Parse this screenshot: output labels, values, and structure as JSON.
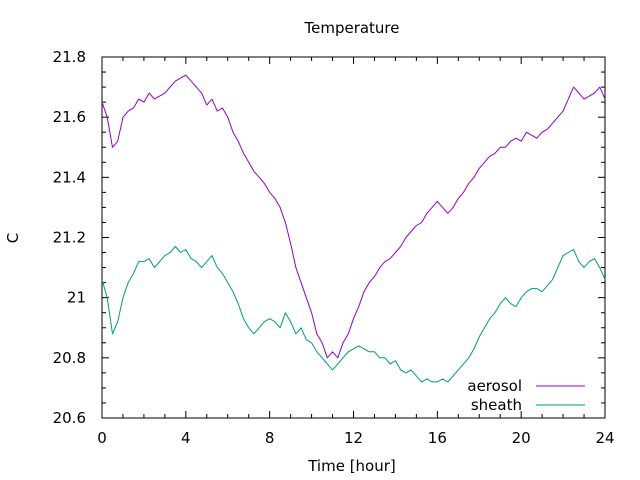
{
  "chart_data": {
    "type": "line",
    "title": "Temperature",
    "xlabel": "Time [hour]",
    "ylabel": "C",
    "xlim": [
      0,
      24
    ],
    "ylim": [
      20.6,
      21.8
    ],
    "xticks": [
      0,
      4,
      8,
      12,
      16,
      20,
      24
    ],
    "xtick_labels": [
      "0",
      "4",
      "8",
      "12",
      "16",
      "20",
      "24"
    ],
    "yticks": [
      20.6,
      20.8,
      21.0,
      21.2,
      21.4,
      21.6,
      21.8
    ],
    "ytick_labels": [
      "20.6",
      "20.8",
      "21",
      "21.2",
      "21.4",
      "21.6",
      "21.8"
    ],
    "grid": false,
    "legend_position": "bottom-right",
    "series": [
      {
        "name": "aerosol",
        "color": "#9400d3",
        "x": [
          0,
          0.25,
          0.5,
          0.75,
          1,
          1.25,
          1.5,
          1.75,
          2,
          2.25,
          2.5,
          2.75,
          3,
          3.25,
          3.5,
          3.75,
          4,
          4.25,
          4.5,
          4.75,
          5,
          5.25,
          5.5,
          5.75,
          6,
          6.25,
          6.5,
          6.75,
          7,
          7.25,
          7.5,
          7.75,
          8,
          8.25,
          8.5,
          8.75,
          9,
          9.25,
          9.5,
          9.75,
          10,
          10.25,
          10.5,
          10.75,
          11,
          11.25,
          11.5,
          11.75,
          12,
          12.25,
          12.5,
          12.75,
          13,
          13.25,
          13.5,
          13.75,
          14,
          14.25,
          14.5,
          14.75,
          15,
          15.25,
          15.5,
          15.75,
          16,
          16.25,
          16.5,
          16.75,
          17,
          17.25,
          17.5,
          17.75,
          18,
          18.25,
          18.5,
          18.75,
          19,
          19.25,
          19.5,
          19.75,
          20,
          20.25,
          20.5,
          20.75,
          21,
          21.25,
          21.5,
          21.75,
          22,
          22.25,
          22.5,
          22.75,
          23,
          23.25,
          23.5,
          23.75,
          24
        ],
        "y": [
          21.65,
          21.6,
          21.5,
          21.52,
          21.6,
          21.62,
          21.63,
          21.66,
          21.65,
          21.68,
          21.66,
          21.67,
          21.68,
          21.7,
          21.72,
          21.73,
          21.74,
          21.72,
          21.7,
          21.68,
          21.64,
          21.66,
          21.62,
          21.63,
          21.6,
          21.55,
          21.52,
          21.48,
          21.45,
          21.42,
          21.4,
          21.38,
          21.35,
          21.33,
          21.3,
          21.25,
          21.18,
          21.1,
          21.05,
          21.0,
          20.95,
          20.88,
          20.85,
          20.8,
          20.82,
          20.8,
          20.85,
          20.88,
          20.93,
          20.97,
          21.02,
          21.05,
          21.07,
          21.1,
          21.12,
          21.13,
          21.15,
          21.17,
          21.2,
          21.22,
          21.24,
          21.25,
          21.28,
          21.3,
          21.32,
          21.3,
          21.28,
          21.3,
          21.33,
          21.35,
          21.38,
          21.4,
          21.43,
          21.45,
          21.47,
          21.48,
          21.5,
          21.5,
          21.52,
          21.53,
          21.52,
          21.55,
          21.54,
          21.53,
          21.55,
          21.56,
          21.58,
          21.6,
          21.62,
          21.66,
          21.7,
          21.68,
          21.66,
          21.67,
          21.68,
          21.7,
          21.66
        ]
      },
      {
        "name": "sheath",
        "color": "#009e73",
        "x": [
          0,
          0.25,
          0.5,
          0.75,
          1,
          1.25,
          1.5,
          1.75,
          2,
          2.25,
          2.5,
          2.75,
          3,
          3.25,
          3.5,
          3.75,
          4,
          4.25,
          4.5,
          4.75,
          5,
          5.25,
          5.5,
          5.75,
          6,
          6.25,
          6.5,
          6.75,
          7,
          7.25,
          7.5,
          7.75,
          8,
          8.25,
          8.5,
          8.75,
          9,
          9.25,
          9.5,
          9.75,
          10,
          10.25,
          10.5,
          10.75,
          11,
          11.25,
          11.5,
          11.75,
          12,
          12.25,
          12.5,
          12.75,
          13,
          13.25,
          13.5,
          13.75,
          14,
          14.25,
          14.5,
          14.75,
          15,
          15.25,
          15.5,
          15.75,
          16,
          16.25,
          16.5,
          16.75,
          17,
          17.25,
          17.5,
          17.75,
          18,
          18.25,
          18.5,
          18.75,
          19,
          19.25,
          19.5,
          19.75,
          20,
          20.25,
          20.5,
          20.75,
          21,
          21.25,
          21.5,
          21.75,
          22,
          22.25,
          22.5,
          22.75,
          23,
          23.25,
          23.5,
          23.75,
          24
        ],
        "y": [
          21.06,
          21.0,
          20.88,
          20.92,
          21.0,
          21.05,
          21.08,
          21.12,
          21.12,
          21.13,
          21.1,
          21.12,
          21.14,
          21.15,
          21.17,
          21.15,
          21.16,
          21.13,
          21.12,
          21.1,
          21.12,
          21.14,
          21.1,
          21.08,
          21.05,
          21.02,
          20.98,
          20.93,
          20.9,
          20.88,
          20.9,
          20.92,
          20.93,
          20.92,
          20.9,
          20.95,
          20.92,
          20.88,
          20.9,
          20.86,
          20.85,
          20.82,
          20.8,
          20.78,
          20.76,
          20.78,
          20.8,
          20.82,
          20.83,
          20.84,
          20.83,
          20.82,
          20.82,
          20.8,
          20.8,
          20.78,
          20.79,
          20.76,
          20.75,
          20.76,
          20.74,
          20.72,
          20.73,
          20.72,
          20.72,
          20.73,
          20.72,
          20.74,
          20.76,
          20.78,
          20.8,
          20.83,
          20.87,
          20.9,
          20.93,
          20.95,
          20.98,
          21.0,
          20.98,
          20.97,
          21.0,
          21.02,
          21.03,
          21.03,
          21.02,
          21.04,
          21.06,
          21.1,
          21.14,
          21.15,
          21.16,
          21.12,
          21.1,
          21.12,
          21.13,
          21.1,
          21.06
        ]
      }
    ]
  }
}
